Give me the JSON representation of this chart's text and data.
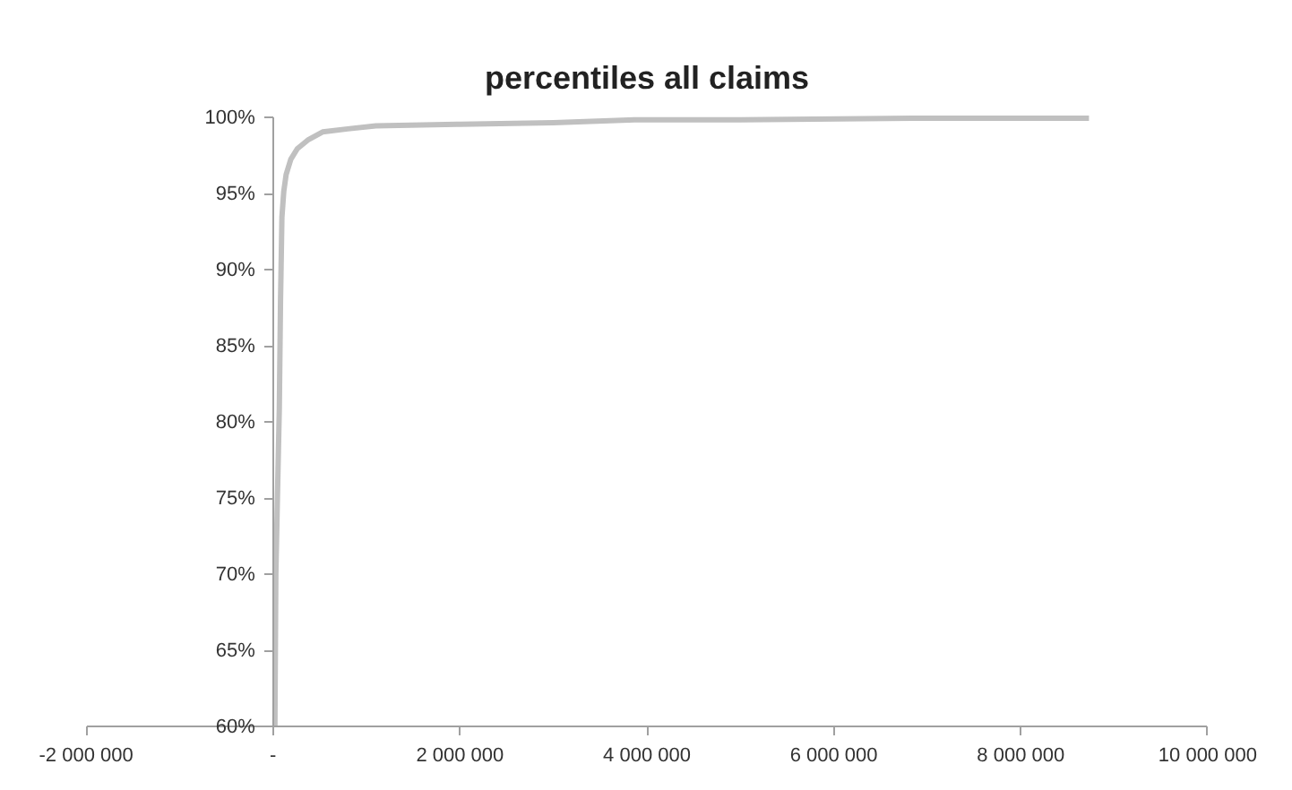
{
  "chart_data": {
    "type": "line",
    "title": "percentiles all claims",
    "series": [
      {
        "color": "#c0c0c0",
        "x": [
          20000,
          30000,
          50000,
          67000,
          80000,
          95000,
          115000,
          140000,
          190000,
          260000,
          380000,
          530000,
          800000,
          1100000,
          2000000,
          3000000,
          3870000,
          5000000,
          7000000,
          8730000
        ],
        "values": [
          60,
          70,
          76,
          80.9,
          88,
          93.5,
          95.2,
          96.3,
          97.3,
          98.0,
          98.6,
          99.1,
          99.3,
          99.5,
          99.6,
          99.7,
          99.9,
          99.9,
          100,
          100
        ]
      }
    ],
    "xlim": [
      -2000000,
      10000000
    ],
    "xticks": [
      {
        "value": -2000000,
        "label": "-2 000 000"
      },
      {
        "value": 0,
        "label": "-"
      },
      {
        "value": 2000000,
        "label": "2 000 000"
      },
      {
        "value": 4000000,
        "label": "4 000 000"
      },
      {
        "value": 6000000,
        "label": "6 000 000"
      },
      {
        "value": 8000000,
        "label": "8 000 000"
      },
      {
        "value": 10000000,
        "label": "10 000 000"
      }
    ],
    "ylim": [
      60,
      100
    ],
    "yticks": [
      {
        "value": 60,
        "label": "60%"
      },
      {
        "value": 65,
        "label": "65%"
      },
      {
        "value": 70,
        "label": "70%"
      },
      {
        "value": 75,
        "label": "75%"
      },
      {
        "value": 80,
        "label": "80%"
      },
      {
        "value": 85,
        "label": "85%"
      },
      {
        "value": 90,
        "label": "90%"
      },
      {
        "value": 95,
        "label": "95%"
      },
      {
        "value": 100,
        "label": "100%"
      }
    ],
    "grid": false,
    "marker": "none",
    "line_style": "solid"
  }
}
